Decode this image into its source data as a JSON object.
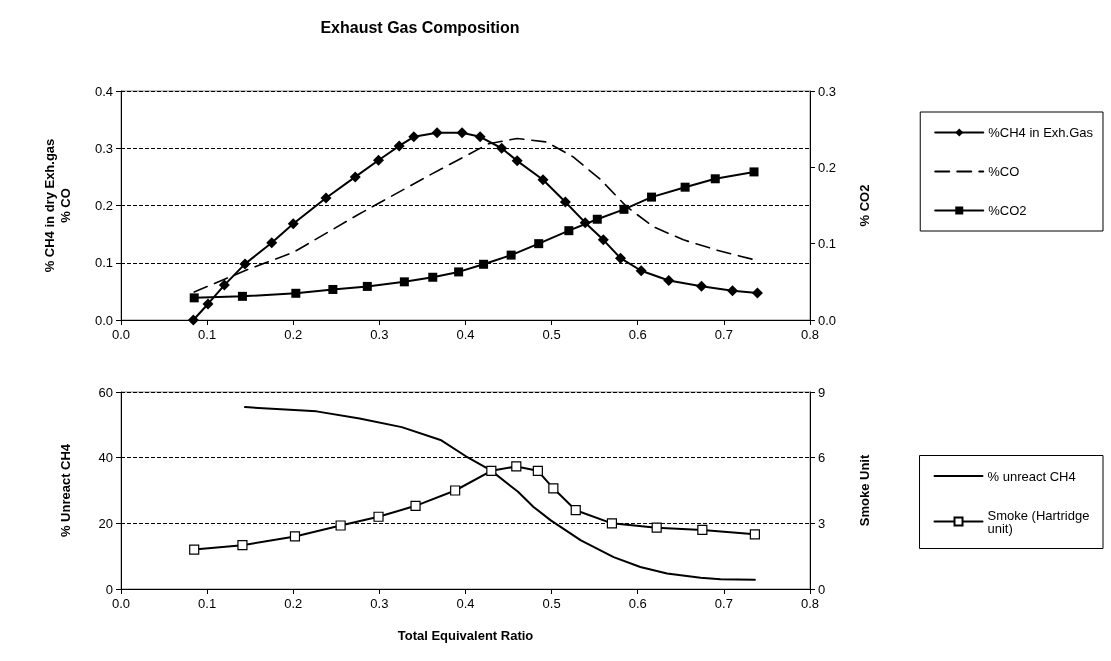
{
  "chart_data": [
    {
      "type": "line",
      "title": "Exhaust Gas Composition",
      "ylabel": "% CH4 in dry Exh.gas\n% CO",
      "y2label": "% CO2",
      "grid": "y",
      "legend": "right",
      "line_style": "solid",
      "xlim": [
        0,
        0.8
      ],
      "xticks": [
        {
          "value": 0,
          "label": "0.0"
        },
        0.1,
        0.2,
        0.3,
        0.4,
        0.5,
        0.6,
        0.7,
        0.8
      ],
      "ylim": [
        0,
        0.4
      ],
      "yticks": [
        {
          "value": 0,
          "label": "0.0"
        },
        0.1,
        0.2,
        0.3,
        0.4
      ],
      "y2lim": [
        0,
        0.3
      ],
      "y2ticks": [
        {
          "value": 0,
          "label": "0.0"
        },
        0.1,
        0.2,
        0.3
      ],
      "series": [
        {
          "name": "%CH4 in Exh.Gas",
          "color": "#000000",
          "marker": "diamond",
          "x": [
            0.084,
            0.101,
            0.12,
            0.144,
            0.175,
            0.2,
            0.238,
            0.272,
            0.299,
            0.323,
            0.34,
            0.367,
            0.396,
            0.417,
            0.442,
            0.46,
            0.49,
            0.516,
            0.539,
            0.56,
            0.58,
            0.604,
            0.636,
            0.674,
            0.71,
            0.739
          ],
          "values": [
            0,
            0.028,
            0.061,
            0.098,
            0.135,
            0.168,
            0.213,
            0.25,
            0.279,
            0.304,
            0.32,
            0.327,
            0.327,
            0.32,
            0.3,
            0.278,
            0.245,
            0.206,
            0.17,
            0.14,
            0.108,
            0.086,
            0.069,
            0.059,
            0.051,
            0.047
          ]
        },
        {
          "name": "%CO",
          "color": "#000000",
          "marker": "none",
          "line_style": "dashed",
          "x": [
            0.085,
            0.15,
            0.2,
            0.274,
            0.357,
            0.427,
            0.46,
            0.494,
            0.525,
            0.557,
            0.587,
            0.618,
            0.653,
            0.692,
            0.736
          ],
          "values": [
            0.049,
            0.09,
            0.118,
            0.183,
            0.252,
            0.308,
            0.317,
            0.311,
            0.285,
            0.245,
            0.198,
            0.163,
            0.14,
            0.122,
            0.105
          ]
        },
        {
          "name": "%CO2",
          "color": "#000000",
          "marker": "square",
          "axis": "y2",
          "x": [
            0.085,
            0.141,
            0.203,
            0.246,
            0.286,
            0.329,
            0.362,
            0.392,
            0.421,
            0.453,
            0.485,
            0.52,
            0.553,
            0.584,
            0.616,
            0.655,
            0.69,
            0.735
          ],
          "values": [
            0.029,
            0.031,
            0.035,
            0.04,
            0.044,
            0.05,
            0.056,
            0.063,
            0.073,
            0.085,
            0.1,
            0.117,
            0.132,
            0.145,
            0.161,
            0.174,
            0.185,
            0.194
          ]
        }
      ]
    },
    {
      "type": "line",
      "xlabel": "Total Equivalent Ratio",
      "ylabel": "% Unreact CH4",
      "y2label": "Smoke Unit",
      "grid": "y",
      "legend": "right",
      "line_style": "solid",
      "xlim": [
        0,
        0.8
      ],
      "xticks": [
        {
          "value": 0,
          "label": "0.0"
        },
        0.1,
        0.2,
        0.3,
        0.4,
        0.5,
        0.6,
        0.7,
        0.8
      ],
      "ylim": [
        0,
        60
      ],
      "yticks": [
        0,
        20,
        40,
        60
      ],
      "y2lim": [
        0,
        9
      ],
      "y2ticks": [
        0,
        3,
        6,
        9
      ],
      "series": [
        {
          "name": "% unreact CH4",
          "color": "#000000",
          "marker": "none",
          "x": [
            0.144,
            0.227,
            0.277,
            0.326,
            0.371,
            0.4,
            0.429,
            0.461,
            0.479,
            0.499,
            0.534,
            0.572,
            0.603,
            0.634,
            0.673,
            0.696,
            0.736
          ],
          "values": [
            55.4,
            54.1,
            51.9,
            49.3,
            45.4,
            40.5,
            36.2,
            29.6,
            25,
            20.9,
            14.8,
            9.7,
            6.7,
            4.7,
            3.4,
            3.0,
            2.8
          ]
        },
        {
          "name": "Smoke (Hartridge unit)",
          "color": "#000000",
          "marker": "square",
          "axis": "y2",
          "x": [
            0.085,
            0.141,
            0.202,
            0.255,
            0.299,
            0.342,
            0.388,
            0.43,
            0.459,
            0.484,
            0.502,
            0.528,
            0.57,
            0.622,
            0.675,
            0.736
          ],
          "values": [
            1.8,
            2.0,
            2.4,
            2.9,
            3.3,
            3.8,
            4.5,
            5.4,
            5.6,
            5.4,
            4.6,
            3.6,
            3.0,
            2.8,
            2.7,
            2.5
          ]
        }
      ]
    }
  ]
}
